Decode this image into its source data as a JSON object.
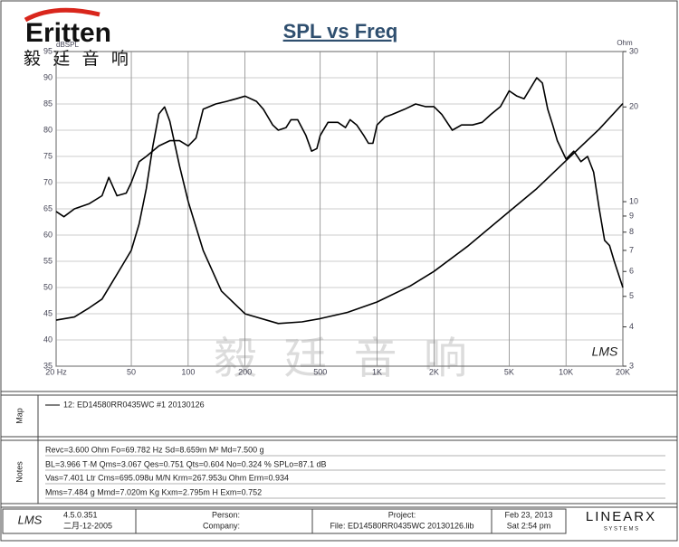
{
  "brand": {
    "logo": "Eritten",
    "chinese": "毅 廷 音 响",
    "watermark": "毅 廷 音 响",
    "mark": "LMS"
  },
  "chart_data": {
    "type": "line",
    "title": "SPL vs Freq",
    "y_label": "dBSPL",
    "y2_label": "Ohm",
    "log_x": true,
    "log_y2": true,
    "grid": true,
    "legend": "12: ED14580RR0435WC #1 20130126",
    "xlim": [
      20,
      20000
    ],
    "xticks": [
      {
        "value": 20,
        "label": "20 Hz"
      },
      50,
      100,
      200,
      500,
      {
        "value": 1000,
        "label": "1K"
      },
      {
        "value": 2000,
        "label": "2K"
      },
      {
        "value": 5000,
        "label": "5K"
      },
      {
        "value": 10000,
        "label": "10K"
      },
      {
        "value": 20000,
        "label": "20K"
      }
    ],
    "ylim": [
      35,
      95
    ],
    "yticks": [
      35,
      40,
      45,
      50,
      55,
      60,
      65,
      70,
      75,
      80,
      85,
      90,
      95
    ],
    "y2lim": [
      3,
      30
    ],
    "y2ticks": [
      3,
      4,
      5,
      6,
      7,
      8,
      9,
      10,
      20,
      30
    ],
    "series": [
      {
        "color": "#000000",
        "axis": "y",
        "x": [
          20,
          22,
          25,
          30,
          35,
          38,
          42,
          47,
          50,
          55,
          60,
          70,
          80,
          90,
          100,
          110,
          120,
          140,
          160,
          180,
          200,
          230,
          250,
          280,
          300,
          330,
          350,
          380,
          420,
          450,
          480,
          500,
          550,
          620,
          680,
          720,
          780,
          850,
          900,
          950,
          1000,
          1100,
          1200,
          1400,
          1600,
          1800,
          2000,
          2200,
          2500,
          2800,
          3200,
          3600,
          4000,
          4500,
          5000,
          5500,
          6000,
          7000,
          7500,
          8000,
          8500,
          9000,
          10000,
          11000,
          12000,
          13000,
          14000,
          15000,
          16000,
          17000,
          18000,
          20000
        ],
        "values": [
          64.5,
          63.5,
          65,
          66,
          67.5,
          71,
          67.5,
          68,
          70,
          74,
          75,
          77,
          78,
          78,
          77,
          78.5,
          84,
          85,
          85.5,
          86,
          86.5,
          85.5,
          84,
          81,
          80,
          80.5,
          82,
          82,
          79,
          76,
          76.5,
          79,
          81.5,
          81.5,
          80.5,
          82,
          81,
          79,
          77.5,
          77.5,
          81,
          82.5,
          83,
          84,
          85,
          84.5,
          84.5,
          83,
          80,
          81,
          81,
          81.5,
          83,
          84.5,
          87.5,
          86.5,
          86,
          90,
          89,
          84,
          81,
          78,
          74.5,
          76,
          74,
          75,
          72,
          65,
          59,
          58,
          55,
          50
        ]
      },
      {
        "color": "#000000",
        "axis": "y2",
        "x": [
          20,
          25,
          30,
          35,
          40,
          45,
          50,
          55,
          60,
          65,
          70,
          75,
          80,
          90,
          100,
          120,
          150,
          200,
          300,
          400,
          500,
          700,
          1000,
          1500,
          2000,
          3000,
          5000,
          7000,
          10000,
          15000,
          20000
        ],
        "values": [
          4.2,
          4.3,
          4.6,
          4.9,
          5.6,
          6.3,
          7,
          8.5,
          11,
          15,
          19,
          20,
          18,
          13,
          10,
          7,
          5.2,
          4.4,
          4.1,
          4.15,
          4.25,
          4.45,
          4.8,
          5.4,
          6,
          7.2,
          9.3,
          11,
          13.5,
          17,
          20.5
        ]
      }
    ]
  },
  "panels": {
    "map": "Map",
    "notes": "Notes"
  },
  "notes": [
    "Revc=3.600 Ohm  Fo=69.782 Hz  Sd=8.659m M²  Md=7.500 g",
    "BL=3.966 T·M  Qms=3.067  Qes=0.751  Qts=0.604  No=0.324 %  SPLo=87.1 dB",
    "Vas=7.401 Ltr  Cms=695.098u M/N  Krm=267.953u Ohm  Erm=0.934",
    "Mms=7.484 g  Mmd=7.020m Kg  Kxm=2.795m H  Exm=0.752"
  ],
  "footer": {
    "version": "4.5.0.351",
    "build_date": "二月-12-2005",
    "person": "Person:",
    "company": "Company:",
    "project": "Project:",
    "file": "File: ED14580RR0435WC 20130126.lib",
    "date": "Feb 23, 2013",
    "time": "Sat  2:54 pm",
    "vendor": "LINEARX",
    "vendor_sub": "S Y S T E M S"
  }
}
